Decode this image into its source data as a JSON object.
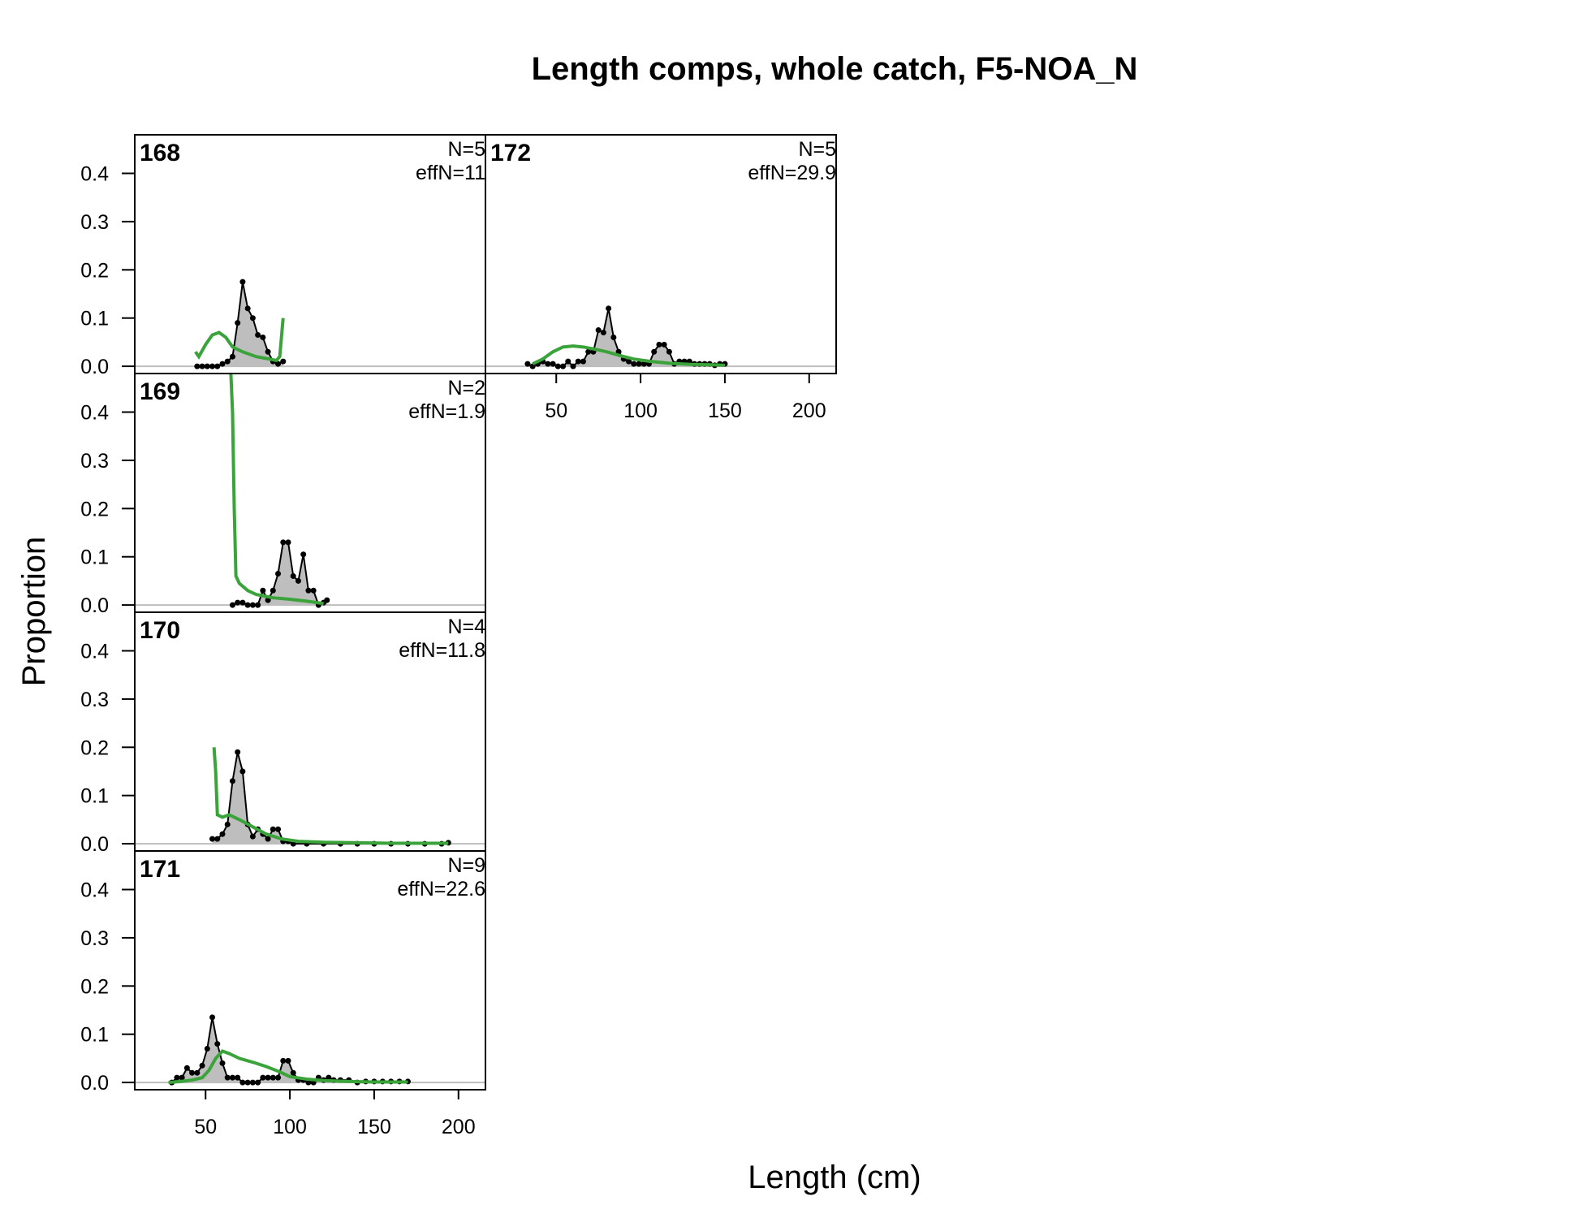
{
  "chart_data": {
    "type": "area",
    "title": "Length comps, whole catch, F5-NOA_N",
    "xlabel": "Length (cm)",
    "ylabel": "Proportion",
    "xlim": [
      8,
      216
    ],
    "ylim": [
      -0.015,
      0.48
    ],
    "y_ticks": [
      0.0,
      0.1,
      0.2,
      0.3,
      0.4
    ],
    "x_ticks": [
      50,
      100,
      150,
      200
    ],
    "colors": {
      "observed_fill": "#bebebe",
      "observed_line": "#000000",
      "expected_line": "#3aa33a",
      "zero_line": "#bebebe"
    },
    "panels": [
      {
        "label": "168",
        "n_text": "N=5",
        "effn_text": "effN=11",
        "observed": [
          [
            45,
            0.0
          ],
          [
            48,
            0.0
          ],
          [
            51,
            0.0
          ],
          [
            54,
            0.0
          ],
          [
            57,
            0.0
          ],
          [
            60,
            0.005
          ],
          [
            63,
            0.01
          ],
          [
            66,
            0.02
          ],
          [
            69,
            0.09
          ],
          [
            72,
            0.175
          ],
          [
            75,
            0.12
          ],
          [
            78,
            0.1
          ],
          [
            81,
            0.065
          ],
          [
            84,
            0.06
          ],
          [
            87,
            0.03
          ],
          [
            90,
            0.01
          ],
          [
            93,
            0.005
          ],
          [
            96,
            0.01
          ]
        ],
        "expected": [
          [
            44,
            0.03
          ],
          [
            46,
            0.02
          ],
          [
            50,
            0.045
          ],
          [
            54,
            0.065
          ],
          [
            58,
            0.07
          ],
          [
            62,
            0.06
          ],
          [
            66,
            0.04
          ],
          [
            72,
            0.03
          ],
          [
            80,
            0.02
          ],
          [
            88,
            0.015
          ],
          [
            92,
            0.012
          ],
          [
            94,
            0.02
          ],
          [
            96,
            0.1
          ]
        ]
      },
      {
        "label": "169",
        "n_text": "N=2",
        "effn_text": "effN=1.9",
        "observed": [
          [
            66,
            0.0
          ],
          [
            69,
            0.005
          ],
          [
            72,
            0.005
          ],
          [
            75,
            0.0
          ],
          [
            78,
            0.0
          ],
          [
            81,
            0.0
          ],
          [
            84,
            0.03
          ],
          [
            87,
            0.01
          ],
          [
            90,
            0.03
          ],
          [
            93,
            0.065
          ],
          [
            96,
            0.13
          ],
          [
            99,
            0.13
          ],
          [
            102,
            0.06
          ],
          [
            105,
            0.05
          ],
          [
            108,
            0.105
          ],
          [
            111,
            0.03
          ],
          [
            114,
            0.03
          ],
          [
            117,
            0.0
          ],
          [
            120,
            0.005
          ],
          [
            122,
            0.01
          ]
        ],
        "expected": [
          [
            65,
            0.48
          ],
          [
            66,
            0.4
          ],
          [
            67,
            0.2
          ],
          [
            68,
            0.06
          ],
          [
            70,
            0.045
          ],
          [
            75,
            0.03
          ],
          [
            80,
            0.022
          ],
          [
            90,
            0.015
          ],
          [
            100,
            0.012
          ],
          [
            110,
            0.008
          ],
          [
            116,
            0.005
          ],
          [
            120,
            0.003
          ]
        ]
      },
      {
        "label": "170",
        "n_text": "N=4",
        "effn_text": "effN=11.8",
        "observed": [
          [
            54,
            0.01
          ],
          [
            57,
            0.01
          ],
          [
            60,
            0.02
          ],
          [
            63,
            0.04
          ],
          [
            66,
            0.13
          ],
          [
            69,
            0.19
          ],
          [
            72,
            0.15
          ],
          [
            75,
            0.04
          ],
          [
            78,
            0.015
          ],
          [
            81,
            0.03
          ],
          [
            84,
            0.02
          ],
          [
            87,
            0.01
          ],
          [
            90,
            0.03
          ],
          [
            93,
            0.03
          ],
          [
            96,
            0.005
          ],
          [
            99,
            0.005
          ],
          [
            102,
            0.0
          ],
          [
            110,
            0.0
          ],
          [
            120,
            0.0
          ],
          [
            130,
            0.0
          ],
          [
            140,
            0.0
          ],
          [
            150,
            0.0
          ],
          [
            160,
            0.0
          ],
          [
            170,
            0.0
          ],
          [
            180,
            0.0
          ],
          [
            190,
            0.0
          ],
          [
            194,
            0.002
          ]
        ],
        "expected": [
          [
            55,
            0.2
          ],
          [
            56,
            0.15
          ],
          [
            57,
            0.06
          ],
          [
            60,
            0.055
          ],
          [
            64,
            0.06
          ],
          [
            70,
            0.05
          ],
          [
            78,
            0.035
          ],
          [
            86,
            0.02
          ],
          [
            95,
            0.01
          ],
          [
            105,
            0.005
          ],
          [
            120,
            0.003
          ],
          [
            140,
            0.002
          ],
          [
            160,
            0.001
          ],
          [
            180,
            0.001
          ],
          [
            194,
            0.001
          ]
        ]
      },
      {
        "label": "171",
        "n_text": "N=9",
        "effn_text": "effN=22.6",
        "observed": [
          [
            30,
            0.0
          ],
          [
            33,
            0.01
          ],
          [
            36,
            0.01
          ],
          [
            39,
            0.03
          ],
          [
            42,
            0.02
          ],
          [
            45,
            0.02
          ],
          [
            48,
            0.035
          ],
          [
            51,
            0.07
          ],
          [
            54,
            0.135
          ],
          [
            57,
            0.08
          ],
          [
            60,
            0.04
          ],
          [
            63,
            0.01
          ],
          [
            66,
            0.01
          ],
          [
            69,
            0.01
          ],
          [
            72,
            0.0
          ],
          [
            75,
            0.0
          ],
          [
            78,
            0.0
          ],
          [
            81,
            0.0
          ],
          [
            84,
            0.01
          ],
          [
            87,
            0.01
          ],
          [
            90,
            0.01
          ],
          [
            93,
            0.01
          ],
          [
            96,
            0.045
          ],
          [
            99,
            0.045
          ],
          [
            102,
            0.02
          ],
          [
            105,
            0.005
          ],
          [
            108,
            0.005
          ],
          [
            111,
            0.0
          ],
          [
            114,
            0.0
          ],
          [
            117,
            0.01
          ],
          [
            120,
            0.005
          ],
          [
            123,
            0.01
          ],
          [
            126,
            0.005
          ],
          [
            130,
            0.005
          ],
          [
            135,
            0.005
          ],
          [
            140,
            0.0
          ],
          [
            145,
            0.002
          ],
          [
            150,
            0.002
          ],
          [
            155,
            0.002
          ],
          [
            160,
            0.002
          ],
          [
            165,
            0.002
          ],
          [
            170,
            0.002
          ]
        ],
        "expected": [
          [
            28,
            0.0
          ],
          [
            35,
            0.002
          ],
          [
            42,
            0.005
          ],
          [
            48,
            0.01
          ],
          [
            52,
            0.025
          ],
          [
            56,
            0.05
          ],
          [
            60,
            0.065
          ],
          [
            64,
            0.06
          ],
          [
            70,
            0.05
          ],
          [
            78,
            0.042
          ],
          [
            86,
            0.033
          ],
          [
            94,
            0.022
          ],
          [
            100,
            0.012
          ],
          [
            110,
            0.007
          ],
          [
            120,
            0.004
          ],
          [
            135,
            0.002
          ],
          [
            150,
            0.001
          ],
          [
            170,
            0.001
          ]
        ]
      },
      {
        "label": "172",
        "n_text": "N=5",
        "effn_text": "effN=29.9",
        "observed": [
          [
            33,
            0.005
          ],
          [
            36,
            0.0
          ],
          [
            39,
            0.005
          ],
          [
            42,
            0.01
          ],
          [
            45,
            0.005
          ],
          [
            48,
            0.005
          ],
          [
            51,
            0.0
          ],
          [
            54,
            0.0
          ],
          [
            57,
            0.01
          ],
          [
            60,
            0.0
          ],
          [
            63,
            0.01
          ],
          [
            66,
            0.01
          ],
          [
            69,
            0.03
          ],
          [
            72,
            0.03
          ],
          [
            75,
            0.075
          ],
          [
            78,
            0.07
          ],
          [
            81,
            0.12
          ],
          [
            84,
            0.06
          ],
          [
            87,
            0.03
          ],
          [
            90,
            0.015
          ],
          [
            93,
            0.01
          ],
          [
            96,
            0.005
          ],
          [
            99,
            0.005
          ],
          [
            102,
            0.005
          ],
          [
            105,
            0.005
          ],
          [
            108,
            0.03
          ],
          [
            111,
            0.045
          ],
          [
            114,
            0.045
          ],
          [
            117,
            0.03
          ],
          [
            120,
            0.005
          ],
          [
            123,
            0.01
          ],
          [
            126,
            0.01
          ],
          [
            129,
            0.01
          ],
          [
            132,
            0.005
          ],
          [
            135,
            0.005
          ],
          [
            138,
            0.005
          ],
          [
            141,
            0.005
          ],
          [
            144,
            0.002
          ],
          [
            147,
            0.005
          ],
          [
            150,
            0.005
          ]
        ],
        "expected": [
          [
            36,
            0.005
          ],
          [
            42,
            0.015
          ],
          [
            48,
            0.03
          ],
          [
            54,
            0.04
          ],
          [
            60,
            0.042
          ],
          [
            66,
            0.04
          ],
          [
            72,
            0.036
          ],
          [
            80,
            0.03
          ],
          [
            88,
            0.022
          ],
          [
            96,
            0.015
          ],
          [
            106,
            0.01
          ],
          [
            118,
            0.006
          ],
          [
            130,
            0.004
          ],
          [
            142,
            0.003
          ],
          [
            150,
            0.002
          ]
        ]
      }
    ]
  }
}
